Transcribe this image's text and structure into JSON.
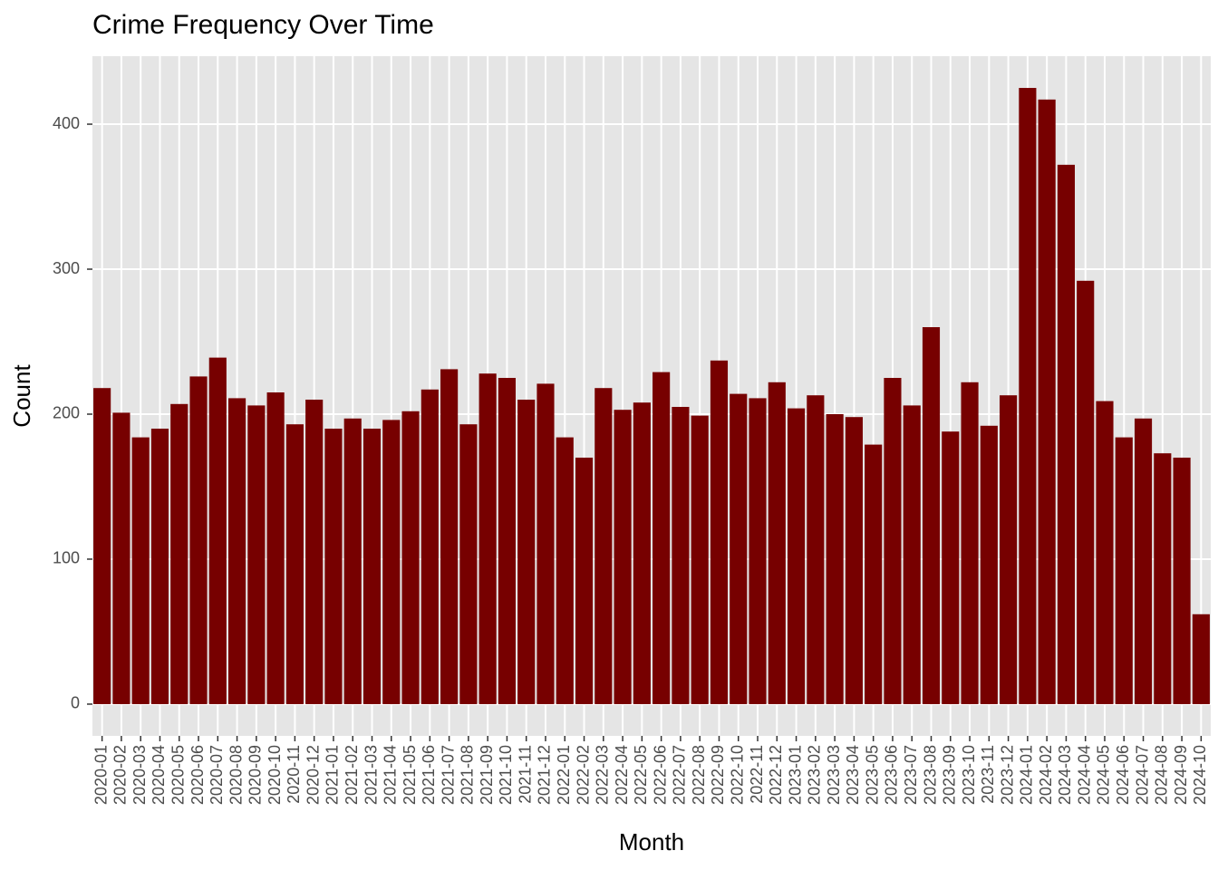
{
  "chart_data": {
    "type": "bar",
    "title": "Crime Frequency Over Time",
    "x_label": "Month",
    "y_label": "Count",
    "categories": [
      "2020-01",
      "2020-02",
      "2020-03",
      "2020-04",
      "2020-05",
      "2020-06",
      "2020-07",
      "2020-08",
      "2020-09",
      "2020-10",
      "2020-11",
      "2020-12",
      "2021-01",
      "2021-02",
      "2021-03",
      "2021-04",
      "2021-05",
      "2021-06",
      "2021-07",
      "2021-08",
      "2021-09",
      "2021-10",
      "2021-11",
      "2021-12",
      "2022-01",
      "2022-02",
      "2022-03",
      "2022-04",
      "2022-05",
      "2022-06",
      "2022-07",
      "2022-08",
      "2022-09",
      "2022-10",
      "2022-11",
      "2022-12",
      "2023-01",
      "2023-02",
      "2023-03",
      "2023-04",
      "2023-05",
      "2023-06",
      "2023-07",
      "2023-08",
      "2023-09",
      "2023-10",
      "2023-11",
      "2023-12",
      "2024-01",
      "2024-02",
      "2024-03",
      "2024-04",
      "2024-05",
      "2024-06",
      "2024-07",
      "2024-08",
      "2024-09",
      "2024-10"
    ],
    "values": [
      218,
      201,
      184,
      190,
      207,
      226,
      239,
      211,
      206,
      215,
      193,
      210,
      190,
      197,
      190,
      196,
      202,
      217,
      231,
      193,
      228,
      225,
      210,
      221,
      184,
      170,
      218,
      203,
      208,
      229,
      205,
      199,
      237,
      214,
      211,
      222,
      204,
      213,
      200,
      198,
      179,
      225,
      206,
      260,
      188,
      222,
      192,
      213,
      425,
      417,
      372,
      292,
      209,
      184,
      197,
      173,
      170,
      62
    ],
    "color": "#770000",
    "ylim": [
      -21.9,
      446.9
    ],
    "yticks": [
      0,
      100,
      200,
      300,
      400
    ],
    "grid": true
  }
}
